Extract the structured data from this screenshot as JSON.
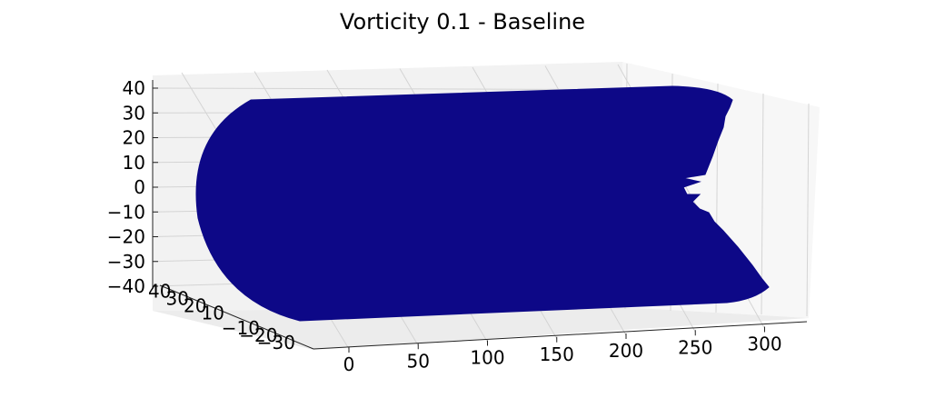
{
  "chart_data": {
    "type": "surface3d",
    "title": "Vorticity 0.1 - Baseline",
    "xlabel": "",
    "ylabel": "",
    "zlabel": "",
    "x_ticks": [
      0,
      50,
      100,
      150,
      200,
      250,
      300
    ],
    "y_ticks": [
      40,
      30,
      20,
      10,
      -10,
      -20,
      -30
    ],
    "z_ticks": [
      40,
      30,
      20,
      10,
      0,
      -10,
      -20,
      -30,
      -40
    ],
    "xlim": [
      -10,
      315
    ],
    "ylim": [
      -35,
      45
    ],
    "zlim": [
      -42,
      42
    ],
    "grid": true,
    "series": [
      {
        "type": "surface",
        "color": "#0d0887",
        "x_range": [
          0,
          300
        ],
        "radius": 40,
        "notch_at_x_end": true
      }
    ]
  }
}
